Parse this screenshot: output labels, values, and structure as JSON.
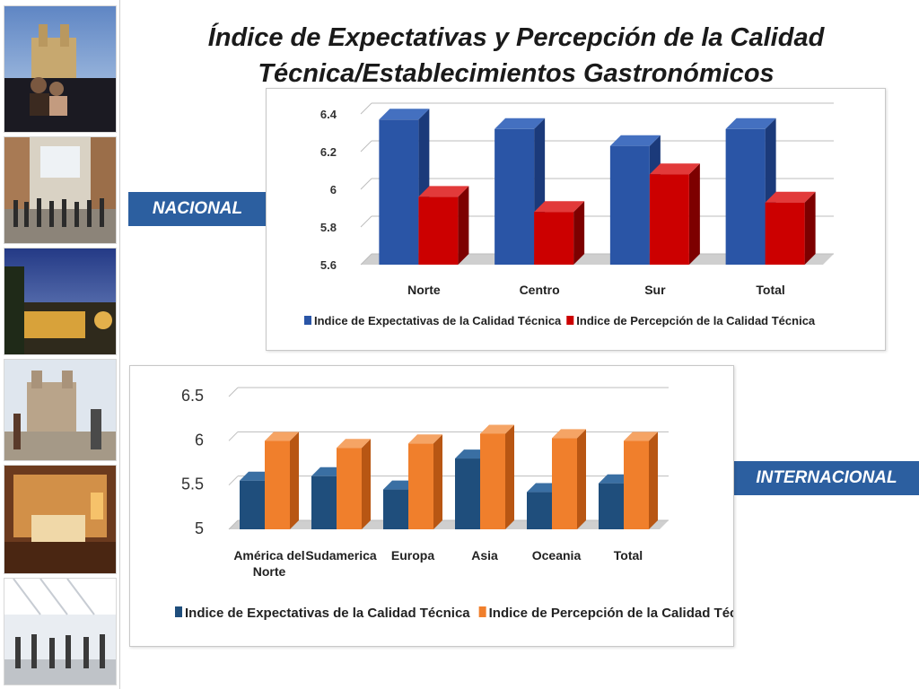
{
  "slide": {
    "title_line1": "Índice de Expectativas y Percepción de la Calidad",
    "title_line2": "Técnica/Establecimientos Gastronómicos",
    "label_nacional": "NACIONAL",
    "label_internacional": "INTERNACIONAL",
    "colors": {
      "tag_bg": "#2c5fa0"
    }
  },
  "chart_data": [
    {
      "id": "nacional",
      "type": "bar",
      "categories": [
        "Norte",
        "Centro",
        "Sur",
        "Total"
      ],
      "series": [
        {
          "name": "Indice de Expectativas de la Calidad Técnica",
          "values": [
            6.37,
            6.32,
            6.23,
            6.32
          ],
          "color": "#2a55a6",
          "side": "#1b3a7a",
          "top": "#4470c0"
        },
        {
          "name": "Indice de Percepción de la Calidad Técnica",
          "values": [
            5.96,
            5.88,
            6.08,
            5.93
          ],
          "color": "#cc0000",
          "side": "#7d0000",
          "top": "#e23a3a"
        }
      ],
      "ylim": [
        5.6,
        6.4
      ],
      "yticks": [
        "6.4",
        "6.2",
        "6",
        "5.8",
        "5.6"
      ],
      "title": "",
      "xlabel": "",
      "ylabel": "",
      "legend": "bottom"
    },
    {
      "id": "internacional",
      "type": "bar",
      "categories": [
        "América del Norte",
        "Sudamerica",
        "Europa",
        "Asia",
        "Oceania",
        "Total"
      ],
      "series": [
        {
          "name": "Indice de Expectativas de la Calidad Técnica",
          "values": [
            5.55,
            5.6,
            5.45,
            5.8,
            5.42,
            5.52
          ],
          "color": "#1f4e7c",
          "side": "#143454",
          "top": "#3a6fa3"
        },
        {
          "name": "Indice de Percepción de la Calidad Técnica",
          "values": [
            6.0,
            5.92,
            5.97,
            6.08,
            6.03,
            6.0
          ],
          "color": "#f07f2c",
          "side": "#b85613",
          "top": "#f5a465"
        }
      ],
      "ylim": [
        5.0,
        6.5
      ],
      "yticks": [
        "6.5",
        "6",
        "5.5",
        "5"
      ],
      "title": "",
      "xlabel": "",
      "ylabel": "",
      "legend": "bottom"
    }
  ]
}
